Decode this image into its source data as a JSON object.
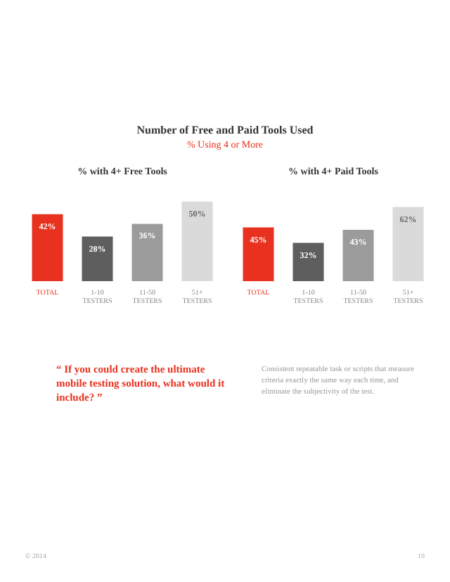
{
  "chart_data": [
    {
      "type": "other",
      "title": "Number of Free and Paid Tools Used",
      "subtitle": "% Using 4 or More"
    },
    {
      "type": "bar",
      "title": "% with 4+ Free Tools",
      "categories": [
        "TOTAL",
        "1-10 TESTERS",
        "11-50 TESTERS",
        "51+ TESTERS"
      ],
      "values": [
        42,
        28,
        36,
        50
      ],
      "value_labels": [
        "42%",
        "28%",
        "36%",
        "50%"
      ],
      "colors": [
        "#e8321f",
        "#5e5e5e",
        "#9b9b9b",
        "#dadada"
      ],
      "grid": false,
      "legend": false
    },
    {
      "type": "bar",
      "title": "% with 4+ Paid Tools",
      "categories": [
        "TOTAL",
        "1-10 TESTERS",
        "11-50 TESTERS",
        "51+ TESTERS"
      ],
      "values": [
        45,
        32,
        43,
        62
      ],
      "value_labels": [
        "45%",
        "32%",
        "43%",
        "62%"
      ],
      "colors": [
        "#e8321f",
        "#5e5e5e",
        "#9b9b9b",
        "#dadada"
      ],
      "grid": false,
      "legend": false
    },
    {
      "type": "other",
      "annotations": [
        "“ If you could create the ultimate mobile testing solution, what would it include? ”",
        "Consistent repeatable task or scripts that measure criteria exactly the same way each time, and eliminate the subjectivity of the test.",
        "© 2014",
        "19"
      ]
    }
  ]
}
